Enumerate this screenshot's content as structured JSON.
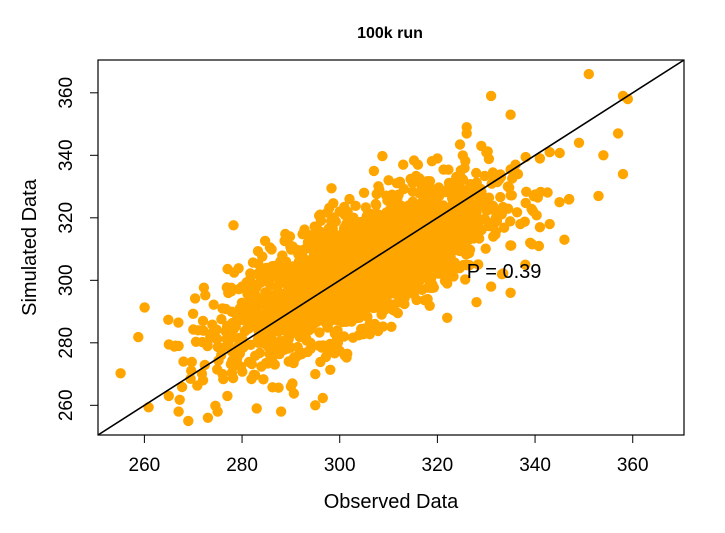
{
  "chart_data": {
    "type": "scatter",
    "title": "100k run",
    "xlabel": "Observed Data",
    "ylabel": "Simulated Data",
    "xlim": [
      250.5,
      370.5
    ],
    "ylim": [
      250.5,
      370.5
    ],
    "xticks": [
      260,
      280,
      300,
      320,
      340,
      360
    ],
    "yticks": [
      260,
      280,
      300,
      320,
      340,
      360
    ],
    "grid": false,
    "legend": "none",
    "point_color": "#FFA500",
    "reference_line": {
      "type": "identity",
      "slope": 1,
      "intercept": 0,
      "color": "#000000"
    },
    "annotation": {
      "text": "P = 0.39",
      "x": 326,
      "y": 303
    },
    "series": [
      {
        "n_points": 2500,
        "center": [
          304,
          304
        ],
        "sd_x": 13,
        "correlation": 0.72,
        "points_sample": [
          [
            351,
            366
          ],
          [
            358,
            359
          ],
          [
            359,
            358
          ],
          [
            357,
            347
          ],
          [
            358,
            334
          ],
          [
            331,
            359
          ],
          [
            335,
            353
          ],
          [
            326,
            347
          ],
          [
            347,
            326
          ],
          [
            353,
            327
          ],
          [
            345,
            325
          ],
          [
            339,
            312
          ],
          [
            341,
            317
          ],
          [
            346,
            313
          ],
          [
            337,
            318
          ],
          [
            331,
            298
          ],
          [
            338,
            305
          ],
          [
            322,
            299
          ],
          [
            318,
            294
          ],
          [
            312,
            293
          ],
          [
            308,
            285
          ],
          [
            301,
            276
          ],
          [
            295,
            270
          ],
          [
            290,
            266
          ],
          [
            283,
            259
          ],
          [
            275,
            258
          ],
          [
            273,
            256
          ],
          [
            269,
            255
          ],
          [
            265,
            263
          ],
          [
            267,
            258
          ],
          [
            268,
            274
          ],
          [
            267,
            279
          ],
          [
            271,
            284
          ],
          [
            272,
            287
          ],
          [
            276,
            291
          ],
          [
            280,
            298
          ],
          [
            285,
            304
          ],
          [
            290,
            311
          ],
          [
            295,
            317
          ],
          [
            300,
            322
          ],
          [
            305,
            328
          ],
          [
            310,
            332
          ],
          [
            316,
            337
          ],
          [
            320,
            339
          ],
          [
            329,
            343
          ],
          [
            326,
            349
          ],
          [
            313,
            337
          ],
          [
            307,
            335
          ],
          [
            302,
            326
          ],
          [
            296,
            321
          ],
          [
            289,
            306
          ],
          [
            292,
            292
          ],
          [
            297,
            289
          ],
          [
            303,
            299
          ],
          [
            306,
            311
          ],
          [
            310,
            305
          ],
          [
            314,
            313
          ],
          [
            318,
            322
          ],
          [
            321,
            318
          ],
          [
            324,
            327
          ],
          [
            327,
            330
          ],
          [
            330,
            325
          ],
          [
            333,
            333
          ],
          [
            336,
            337
          ],
          [
            341,
            339
          ],
          [
            343,
            341
          ],
          [
            300,
            300
          ],
          [
            298,
            296
          ],
          [
            303,
            304
          ],
          [
            307,
            303
          ],
          [
            288,
            284
          ],
          [
            284,
            280
          ],
          [
            279,
            275
          ],
          [
            276,
            270
          ],
          [
            281,
            290
          ],
          [
            286,
            293
          ],
          [
            294,
            280
          ],
          [
            299,
            283
          ],
          [
            304,
            288
          ],
          [
            309,
            291
          ],
          [
            314,
            298
          ],
          [
            319,
            306
          ],
          [
            323,
            310
          ],
          [
            328,
            315
          ],
          [
            332,
            320
          ],
          [
            295,
            260
          ],
          [
            288,
            258
          ],
          [
            272,
            268
          ],
          [
            277,
            263
          ],
          [
            349,
            344
          ],
          [
            354,
            340
          ],
          [
            343,
            318
          ],
          [
            335,
            296
          ],
          [
            328,
            293
          ],
          [
            322,
            288
          ]
        ]
      }
    ]
  }
}
